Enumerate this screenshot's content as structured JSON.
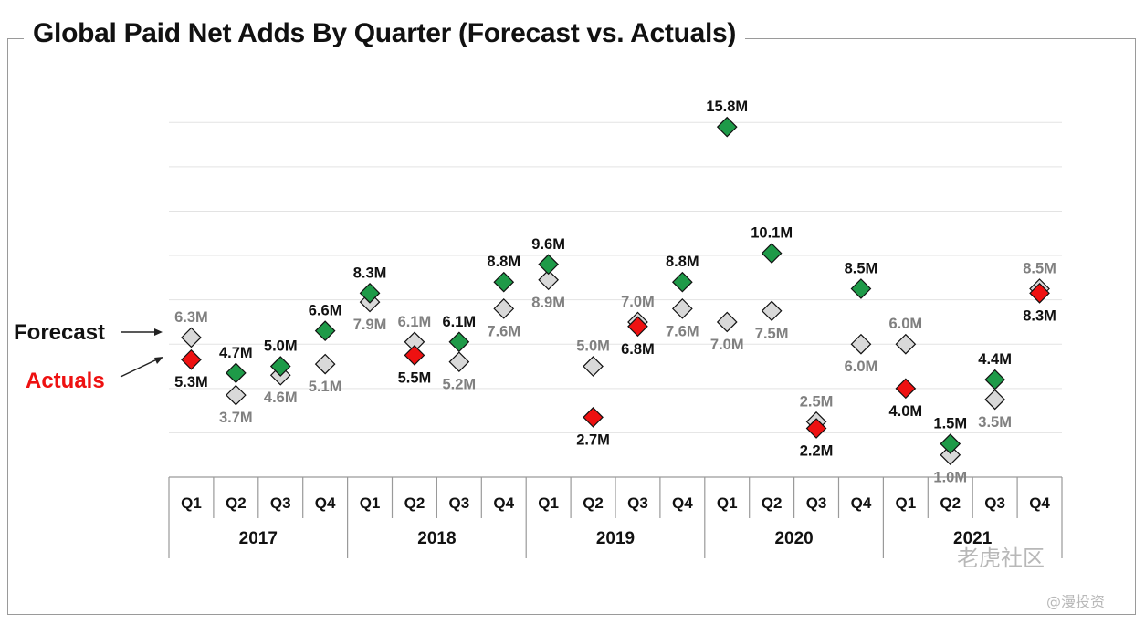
{
  "title": "Global Paid Net Adds By Quarter (Forecast vs. Actuals)",
  "watermark": {
    "brand": "老虎社区",
    "handle": "@漫投资"
  },
  "colors": {
    "forecast": "#d9d9d9",
    "beat": "#1e9a48",
    "miss": "#ee1111",
    "actuals_label": "#ee1111"
  },
  "chart_data": {
    "type": "scatter",
    "title": "Global Paid Net Adds By Quarter (Forecast vs. Actuals)",
    "y_unit": "M",
    "ylim": [
      0,
      17
    ],
    "grid": true,
    "quarters": [
      "Q1",
      "Q2",
      "Q3",
      "Q4",
      "Q1",
      "Q2",
      "Q3",
      "Q4",
      "Q1",
      "Q2",
      "Q3",
      "Q4",
      "Q1",
      "Q2",
      "Q3",
      "Q4",
      "Q1",
      "Q2",
      "Q3",
      "Q4"
    ],
    "years": [
      "2017",
      "2018",
      "2019",
      "2020",
      "2021"
    ],
    "series": [
      {
        "name": "Forecast",
        "values": [
          6.3,
          3.7,
          4.6,
          5.1,
          7.9,
          6.1,
          5.2,
          7.6,
          8.9,
          5.0,
          7.0,
          7.6,
          7.0,
          7.5,
          2.5,
          6.0,
          6.0,
          1.0,
          3.5,
          8.5
        ],
        "labels": [
          "6.3M",
          "3.7M",
          "4.6M",
          "5.1M",
          "7.9M",
          "6.1M",
          "5.2M",
          "7.6M",
          "8.9M",
          "5.0M",
          "7.0M",
          "7.6M",
          "7.0M",
          "7.5M",
          "2.5M",
          "6.0M",
          "6.0M",
          "1.0M",
          "3.5M",
          "8.5M"
        ]
      },
      {
        "name": "Actuals",
        "values": [
          5.3,
          4.7,
          5.0,
          6.6,
          8.3,
          5.5,
          6.1,
          8.8,
          9.6,
          2.7,
          6.8,
          8.8,
          15.8,
          10.1,
          2.2,
          8.5,
          4.0,
          1.5,
          4.4,
          8.3
        ],
        "labels": [
          "5.3M",
          "4.7M",
          "5.0M",
          "6.6M",
          "8.3M",
          "5.5M",
          "6.1M",
          "8.8M",
          "9.6M",
          "2.7M",
          "6.8M",
          "8.8M",
          "15.8M",
          "10.1M",
          "2.2M",
          "8.5M",
          "4.0M",
          "1.5M",
          "4.4M",
          "8.3M"
        ],
        "beat": [
          false,
          true,
          true,
          true,
          true,
          false,
          true,
          true,
          true,
          false,
          false,
          true,
          true,
          true,
          false,
          true,
          false,
          true,
          true,
          false
        ]
      }
    ],
    "legend": {
      "forecast_label": "Forecast",
      "actuals_label": "Actuals"
    }
  }
}
